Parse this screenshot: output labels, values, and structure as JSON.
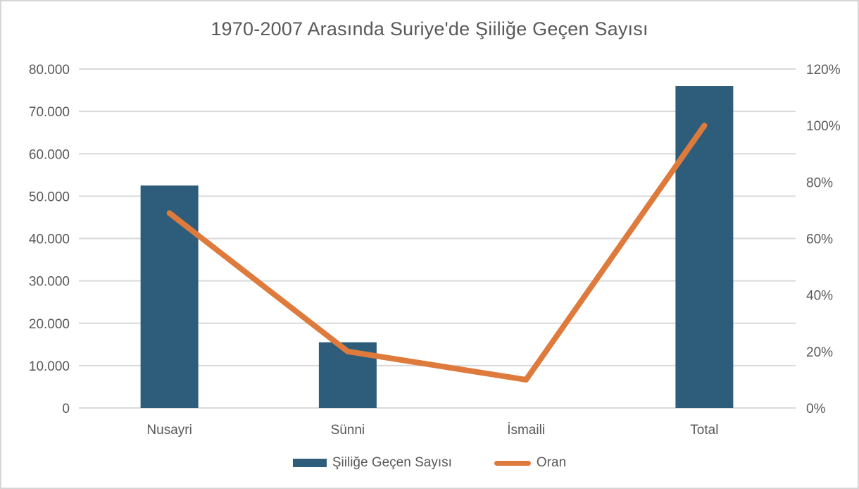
{
  "chart_data": {
    "type": "bar",
    "subtype": "combo-bar-line-dual-axis",
    "title": "1970-2007 Arasında Suriye'de Şiiliğe Geçen Sayısı",
    "categories": [
      "Nusayri",
      "Sünni",
      "İsmaili",
      "Total"
    ],
    "series": [
      {
        "name": "Şiiliğe Geçen Sayısı",
        "type": "bar",
        "axis": "left",
        "values": [
          52500,
          15500,
          null,
          76000
        ],
        "color": "#2e5d7b"
      },
      {
        "name": "Oran",
        "type": "line",
        "axis": "right",
        "values_percent": [
          69,
          20,
          10,
          100
        ],
        "color": "#de7b3c"
      }
    ],
    "left_axis": {
      "min": 0,
      "max": 80000,
      "tick_labels": [
        "80.000",
        "70.000",
        "60.000",
        "50.000",
        "40.000",
        "30.000",
        "20.000",
        "10.000",
        "0"
      ]
    },
    "right_axis": {
      "min_percent": 0,
      "max_percent": 120,
      "tick_labels": [
        "120%",
        "100%",
        "80%",
        "60%",
        "40%",
        "20%",
        "0%"
      ]
    },
    "grid": true,
    "legend_position": "bottom"
  },
  "colors": {
    "bar": "#2e5d7b",
    "line": "#de7b3c",
    "gridline": "#d9d9d9",
    "text": "#595959",
    "background": "#ffffff",
    "border": "#d6d6d6"
  }
}
